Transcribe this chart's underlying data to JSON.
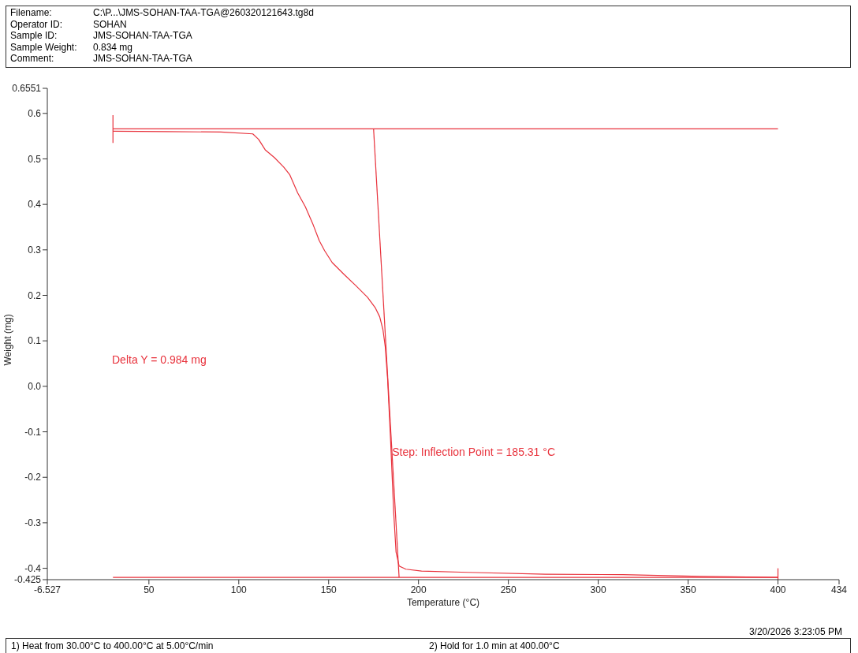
{
  "chart_data": {
    "type": "line",
    "xlabel": "Temperature (°C)",
    "ylabel": "Weight (mg)",
    "xlim": [
      -6.527,
      434
    ],
    "xticks": [
      -6.527,
      50,
      100,
      150,
      200,
      250,
      300,
      350,
      400,
      434
    ],
    "ylim": [
      -0.425,
      0.6551
    ],
    "yticks": [
      -0.425,
      -0.4,
      -0.3,
      -0.2,
      -0.1,
      {
        "value": 0,
        "label": "0.0"
      },
      0.1,
      0.2,
      0.3,
      0.4,
      0.5,
      0.6,
      0.6551
    ],
    "marker": "none",
    "line_style": "solid",
    "series": [
      {
        "color": "#e8323c",
        "x": [
          30,
          60,
          90,
          107.8,
          111,
          114.7,
          119.8,
          125,
          128.4,
          132.8,
          137,
          141.4,
          144.8,
          147.8,
          152,
          158.6,
          165,
          171.6,
          175.9,
          178.4,
          180.2,
          181.5,
          182.8,
          184.5,
          186.2,
          187.5,
          189.2,
          193,
          201.7,
          227.6,
          270.7,
          313.8,
          356.9,
          400
        ],
        "values": [
          0.561,
          0.56,
          0.559,
          0.555,
          0.543,
          0.52,
          0.503,
          0.482,
          0.465,
          0.425,
          0.395,
          0.355,
          0.32,
          0.298,
          0.272,
          0.246,
          0.222,
          0.196,
          0.173,
          0.153,
          0.125,
          0.087,
          0.017,
          -0.121,
          -0.277,
          -0.364,
          -0.395,
          -0.402,
          -0.406,
          -0.409,
          -0.413,
          -0.414,
          -0.418,
          -0.42
        ]
      },
      {
        "color": "#e8323c",
        "x": [
          30,
          400
        ],
        "values": [
          0.566,
          0.566
        ]
      },
      {
        "color": "#e8323c",
        "x": [
          30,
          400
        ],
        "values": [
          -0.42,
          -0.42
        ]
      },
      {
        "color": "#e8323c",
        "x": [
          175,
          189.2
        ],
        "values": [
          0.566,
          -0.42
        ]
      },
      {
        "color": "#e8323c",
        "x": [
          30,
          30
        ],
        "values": [
          0.535,
          0.596
        ]
      },
      {
        "color": "#e8323c",
        "x": [
          400,
          400
        ],
        "values": [
          -0.425,
          -0.4
        ]
      }
    ],
    "annotations": [
      "Filename:",
      "C:\\P...\\JMS-SOHAN-TAA-TGA@260320121643.tg8d",
      "Operator ID:",
      "SOHAN",
      "Sample ID:",
      "JMS-SOHAN-TAA-TGA",
      "Sample Weight:",
      "0.834 mg",
      "Comment:",
      "JMS-SOHAN-TAA-TGA",
      "Delta Y = 0.984 mg",
      "3/20/2026 3:23:05 PM",
      "1)  Heat from 30.00°C to 400.00°C at 5.00°C/min",
      "2)    Hold for 1.0 min at 400.00°C",
      {
        "text": "Step: Inflection Point = 185.31 °C",
        "x": 185.31,
        "y": -0.145
      }
    ]
  }
}
